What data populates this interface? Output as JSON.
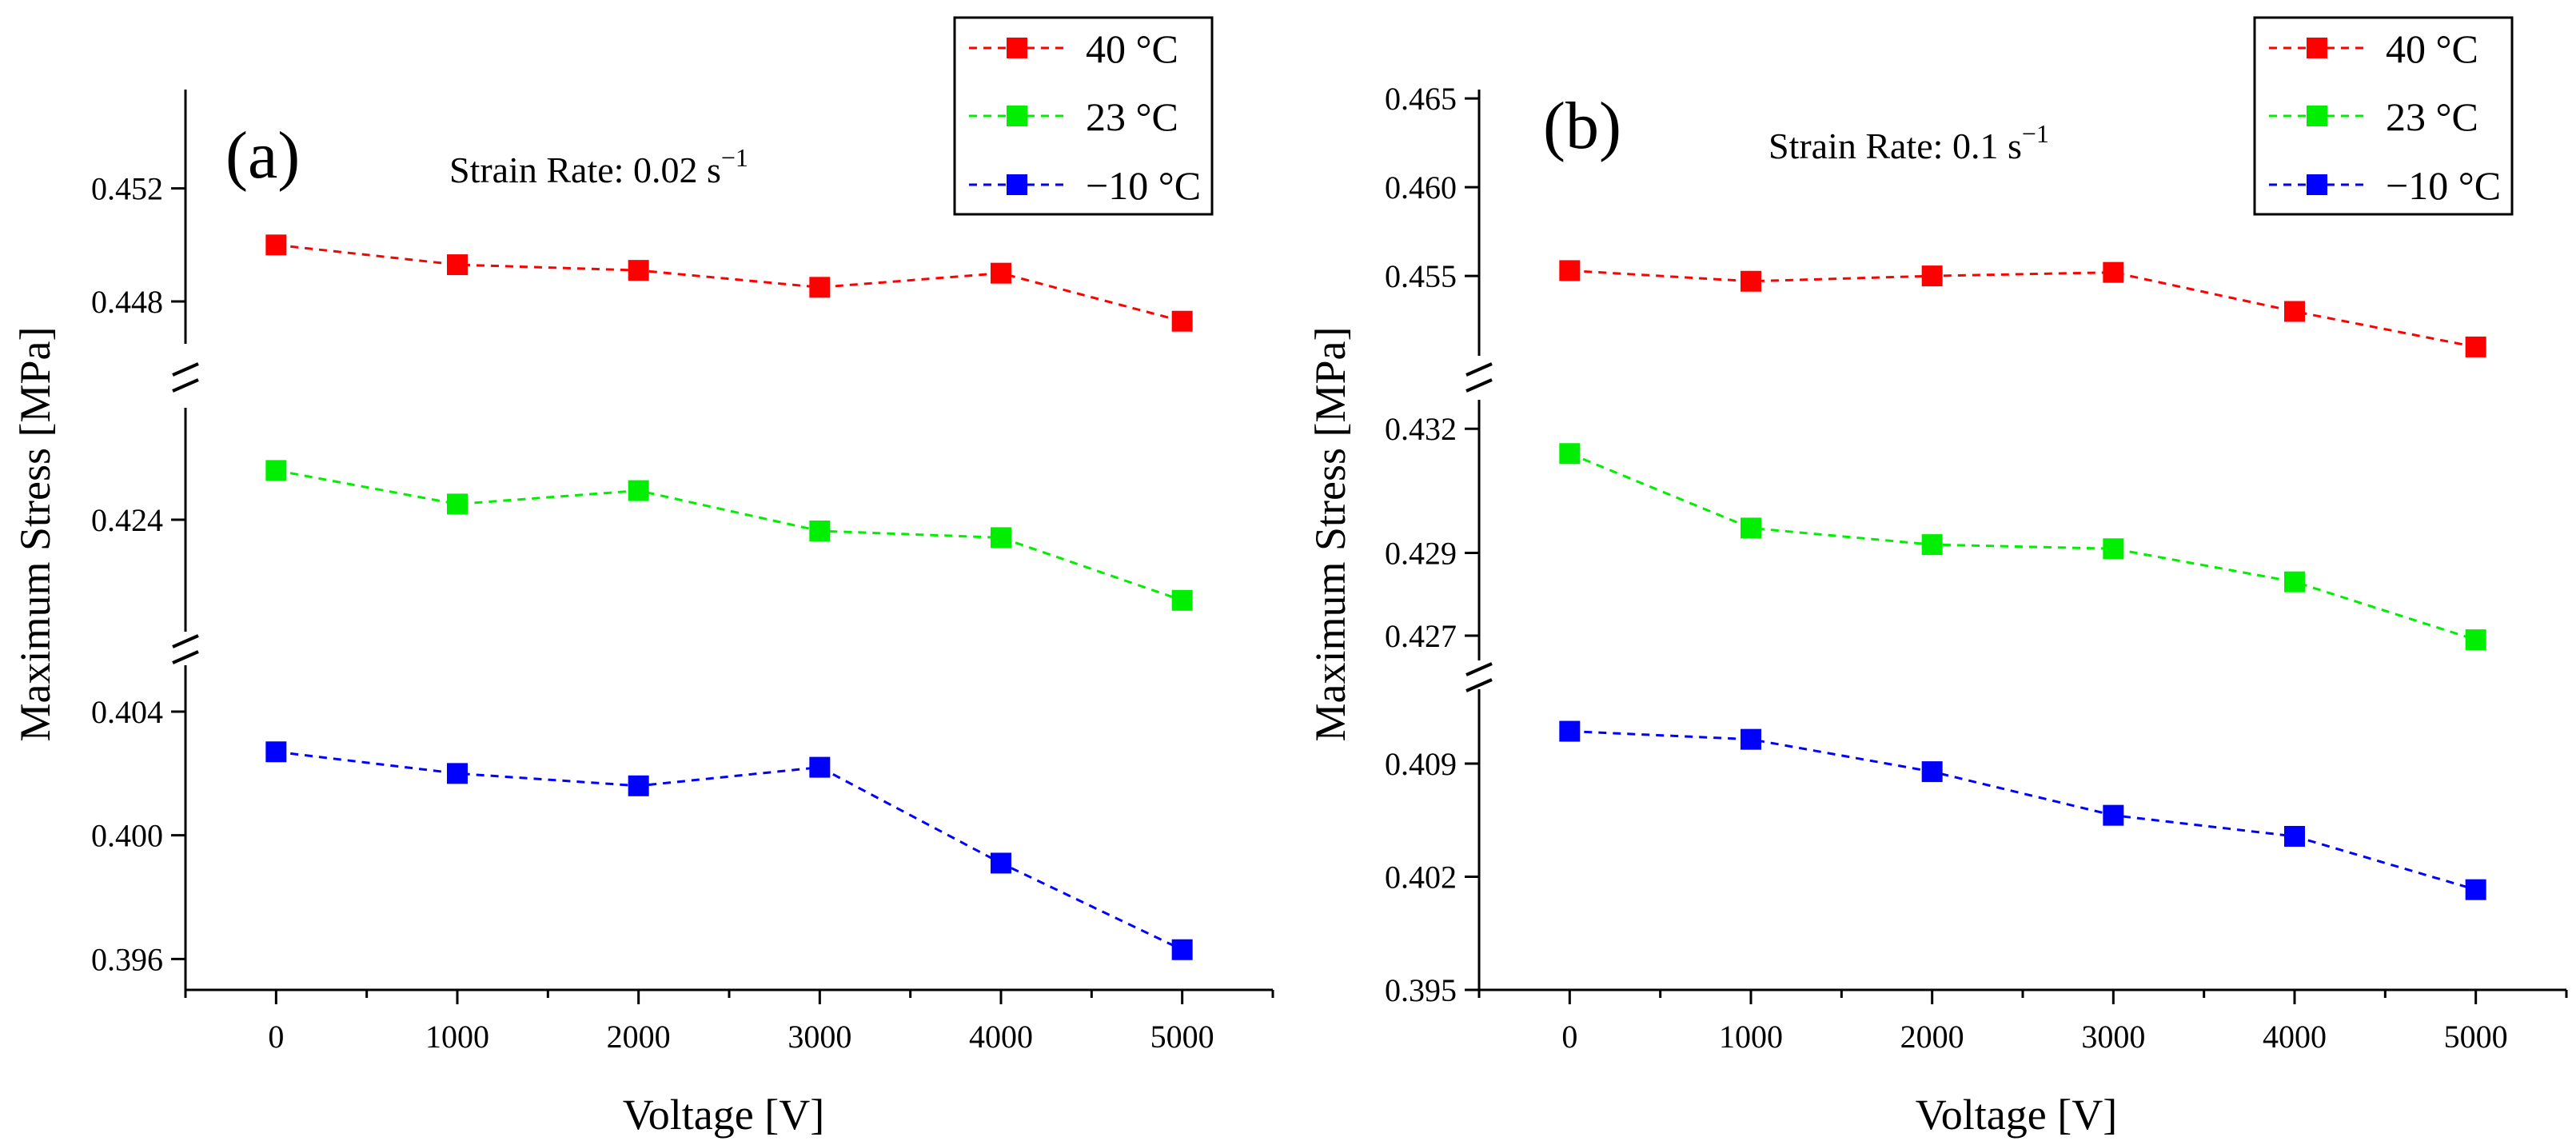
{
  "chart_data": [
    {
      "type": "line",
      "panel_label": "(a)",
      "annotation": {
        "text": "Strain Rate: 0.02 s",
        "superscript": "−1"
      },
      "xlabel": "Voltage [V]",
      "ylabel": "Maximum Stress [MPa]",
      "x": [
        0,
        1000,
        2000,
        3000,
        4000,
        5000
      ],
      "xlim": [
        -500,
        5500
      ],
      "x_ticks": [
        0,
        1000,
        2000,
        3000,
        4000,
        5000
      ],
      "series": [
        {
          "name": "40 °C",
          "color": "#ff0000",
          "values": [
            0.45,
            0.4493,
            0.4491,
            0.4485,
            0.449,
            0.4473
          ]
        },
        {
          "name": "23 °C",
          "color": "#00ee00",
          "values": [
            0.4262,
            0.4247,
            0.4253,
            0.4235,
            0.4232,
            0.4204
          ]
        },
        {
          "name": "−10 °C",
          "color": "#0000ff",
          "values": [
            0.4027,
            0.402,
            0.4016,
            0.4022,
            0.3991,
            0.3963
          ]
        }
      ],
      "y_segments": [
        {
          "range": [
            0.4465,
            0.4555
          ],
          "ticks": [
            "0.448",
            "0.452"
          ]
        },
        {
          "range": [
            0.419,
            0.429
          ],
          "ticks": [
            "0.424"
          ]
        },
        {
          "range": [
            0.395,
            0.4055
          ],
          "ticks": [
            "0.396",
            "0.400",
            "0.404"
          ]
        }
      ],
      "grid": false,
      "legend_position": "top-right"
    },
    {
      "type": "line",
      "panel_label": "(b)",
      "annotation": {
        "text": "Strain Rate: 0.1 s",
        "superscript": "−1"
      },
      "xlabel": "Voltage [V]",
      "ylabel": "Maximum Stress [MPa]",
      "x": [
        0,
        1000,
        2000,
        3000,
        4000,
        5000
      ],
      "xlim": [
        -500,
        5500
      ],
      "x_ticks": [
        0,
        1000,
        2000,
        3000,
        4000,
        5000
      ],
      "series": [
        {
          "name": "40 °C",
          "color": "#ff0000",
          "values": [
            0.4553,
            0.4547,
            0.455,
            0.4552,
            0.453,
            0.451
          ]
        },
        {
          "name": "23 °C",
          "color": "#00ee00",
          "values": [
            0.4314,
            0.4296,
            0.4292,
            0.4291,
            0.4283,
            0.4269
          ]
        },
        {
          "name": "−10 °C",
          "color": "#0000ff",
          "values": [
            0.411,
            0.4105,
            0.4085,
            0.4058,
            0.4045,
            0.4012
          ]
        }
      ],
      "y_segments": [
        {
          "range": [
            0.4505,
            0.4655
          ],
          "ticks": [
            "0.455",
            "0.460",
            "0.465"
          ]
        },
        {
          "range": [
            0.4264,
            0.4327
          ],
          "ticks": [
            "0.427",
            "0.429",
            "0.432"
          ]
        },
        {
          "range": [
            0.395,
            0.4136
          ],
          "ticks": [
            "0.395",
            "0.402",
            "0.409"
          ]
        }
      ],
      "grid": false,
      "legend_position": "top-right"
    }
  ]
}
